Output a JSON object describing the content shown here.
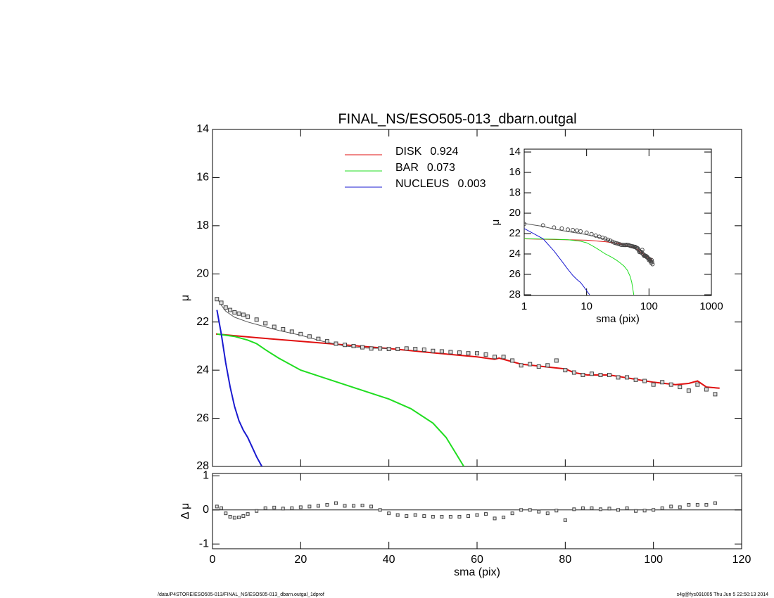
{
  "chart_data": [
    {
      "type": "line",
      "title": "FINAL_NS/ESO505-013_dbarn.outgal",
      "ylabel": "μ",
      "xlim": [
        0,
        120
      ],
      "ylim": [
        28,
        14
      ],
      "xticks": [
        0,
        20,
        40,
        60,
        80,
        100,
        120
      ],
      "yticks": [
        14,
        16,
        18,
        20,
        22,
        24,
        26,
        28
      ],
      "series": [
        {
          "name": "DISK",
          "fraction": 0.924,
          "color": "#e01010",
          "x": [
            0.8,
            10,
            20,
            30,
            40,
            50,
            60,
            64,
            65,
            70,
            75,
            80,
            82,
            85,
            90,
            95,
            100,
            105,
            108,
            110,
            112,
            115
          ],
          "values": [
            22.5,
            22.65,
            22.8,
            22.95,
            23.1,
            23.28,
            23.45,
            23.55,
            23.5,
            23.75,
            23.85,
            23.95,
            24.1,
            24.2,
            24.2,
            24.35,
            24.5,
            24.6,
            24.55,
            24.45,
            24.7,
            24.75
          ]
        },
        {
          "name": "BAR",
          "fraction": 0.073,
          "color": "#20dd20",
          "x": [
            1,
            3,
            5,
            8,
            10,
            12,
            15,
            20,
            25,
            30,
            35,
            40,
            45,
            50,
            53,
            55,
            57
          ],
          "values": [
            22.5,
            22.55,
            22.6,
            22.75,
            22.9,
            23.15,
            23.5,
            24.0,
            24.3,
            24.6,
            24.9,
            25.2,
            25.6,
            26.2,
            26.8,
            27.4,
            28.0
          ]
        },
        {
          "name": "NUCLEUS",
          "fraction": 0.003,
          "color": "#1a1ad0",
          "x": [
            1,
            2,
            3,
            4,
            5,
            6,
            7,
            8,
            9,
            10,
            11.2
          ],
          "values": [
            21.5,
            22.5,
            23.7,
            24.7,
            25.5,
            26.1,
            26.5,
            26.8,
            27.2,
            27.6,
            28.0
          ]
        },
        {
          "color": "#555555",
          "x": [
            1,
            2,
            3,
            5,
            8,
            10,
            15,
            20,
            25,
            30,
            35,
            40
          ],
          "values": [
            21.0,
            21.3,
            21.55,
            21.8,
            22.0,
            22.1,
            22.35,
            22.55,
            22.8,
            23.0,
            23.08,
            23.1
          ]
        },
        {
          "color": "#444444",
          "marker": "square",
          "x": [
            1,
            2,
            3,
            4,
            5,
            6,
            7,
            8,
            10,
            12,
            14,
            16,
            18,
            20,
            22,
            24,
            26,
            28,
            30,
            32,
            34,
            36,
            38,
            40,
            42,
            44,
            46,
            48,
            50,
            52,
            54,
            56,
            58,
            60,
            62,
            64,
            66,
            68,
            70,
            72,
            74,
            76,
            78,
            80,
            82,
            84,
            86,
            88,
            90,
            92,
            94,
            96,
            98,
            100,
            102,
            104,
            106,
            108,
            110,
            112,
            114
          ],
          "values": [
            21.05,
            21.2,
            21.4,
            21.5,
            21.6,
            21.65,
            21.7,
            21.78,
            21.9,
            22.05,
            22.2,
            22.3,
            22.4,
            22.5,
            22.6,
            22.7,
            22.8,
            22.9,
            22.95,
            23.0,
            23.05,
            23.1,
            23.1,
            23.12,
            23.12,
            23.1,
            23.12,
            23.15,
            23.2,
            23.22,
            23.25,
            23.27,
            23.3,
            23.3,
            23.35,
            23.45,
            23.45,
            23.6,
            23.8,
            23.75,
            23.85,
            23.8,
            23.6,
            24.0,
            24.1,
            24.2,
            24.15,
            24.2,
            24.2,
            24.3,
            24.3,
            24.4,
            24.45,
            24.6,
            24.5,
            24.6,
            24.7,
            24.85,
            24.6,
            24.8,
            25.0
          ]
        }
      ]
    },
    {
      "type": "scatter",
      "ylabel": "Δ μ",
      "xlabel": "sma (pix)",
      "color": "#444444",
      "xlim": [
        0,
        120
      ],
      "ylim": [
        -1.14,
        1.07
      ],
      "xticks": [
        0,
        20,
        40,
        60,
        80,
        100,
        120
      ],
      "yticks": [
        -1,
        0,
        1
      ],
      "reference_line": 0,
      "x": [
        1,
        2,
        3,
        4,
        5,
        6,
        7,
        8,
        10,
        12,
        14,
        16,
        18,
        20,
        22,
        24,
        26,
        28,
        30,
        32,
        34,
        36,
        38,
        40,
        42,
        44,
        46,
        48,
        50,
        52,
        54,
        56,
        58,
        60,
        62,
        64,
        66,
        68,
        70,
        72,
        74,
        76,
        78,
        80,
        82,
        84,
        86,
        88,
        90,
        92,
        94,
        96,
        98,
        100,
        102,
        104,
        106,
        108,
        110,
        112,
        114
      ],
      "values": [
        0.1,
        0.05,
        -0.1,
        -0.2,
        -0.23,
        -0.22,
        -0.18,
        -0.12,
        -0.03,
        0.05,
        0.07,
        0.04,
        0.05,
        0.08,
        0.1,
        0.12,
        0.15,
        0.2,
        0.12,
        0.12,
        0.13,
        0.1,
        0.0,
        -0.1,
        -0.15,
        -0.18,
        -0.15,
        -0.18,
        -0.2,
        -0.2,
        -0.2,
        -0.2,
        -0.18,
        -0.15,
        -0.12,
        -0.25,
        -0.22,
        -0.1,
        0.0,
        0.0,
        -0.05,
        -0.1,
        -0.02,
        -0.3,
        0.02,
        0.05,
        0.05,
        0.02,
        0.04,
        0.0,
        0.05,
        -0.03,
        -0.02,
        0.0,
        0.05,
        0.1,
        0.08,
        0.15,
        0.15,
        0.15,
        0.2
      ]
    },
    {
      "type": "line",
      "ylabel": "μ",
      "xlabel": "sma (pix)",
      "xscale": "log",
      "xlim": [
        1,
        1000
      ],
      "ylim": [
        28.07,
        13.72
      ],
      "xticks": [
        1,
        10,
        100,
        1000
      ],
      "yticks": [
        14,
        16,
        18,
        20,
        22,
        24,
        26,
        28
      ]
    }
  ],
  "footer": {
    "left": "/data/P4STORE/ESO505-013/FINAL_NS/ESO505-013_dbarn.outgal_1dprof",
    "right": "s4g@fys091005  Thu Jun  5 22:50:13 2014"
  }
}
